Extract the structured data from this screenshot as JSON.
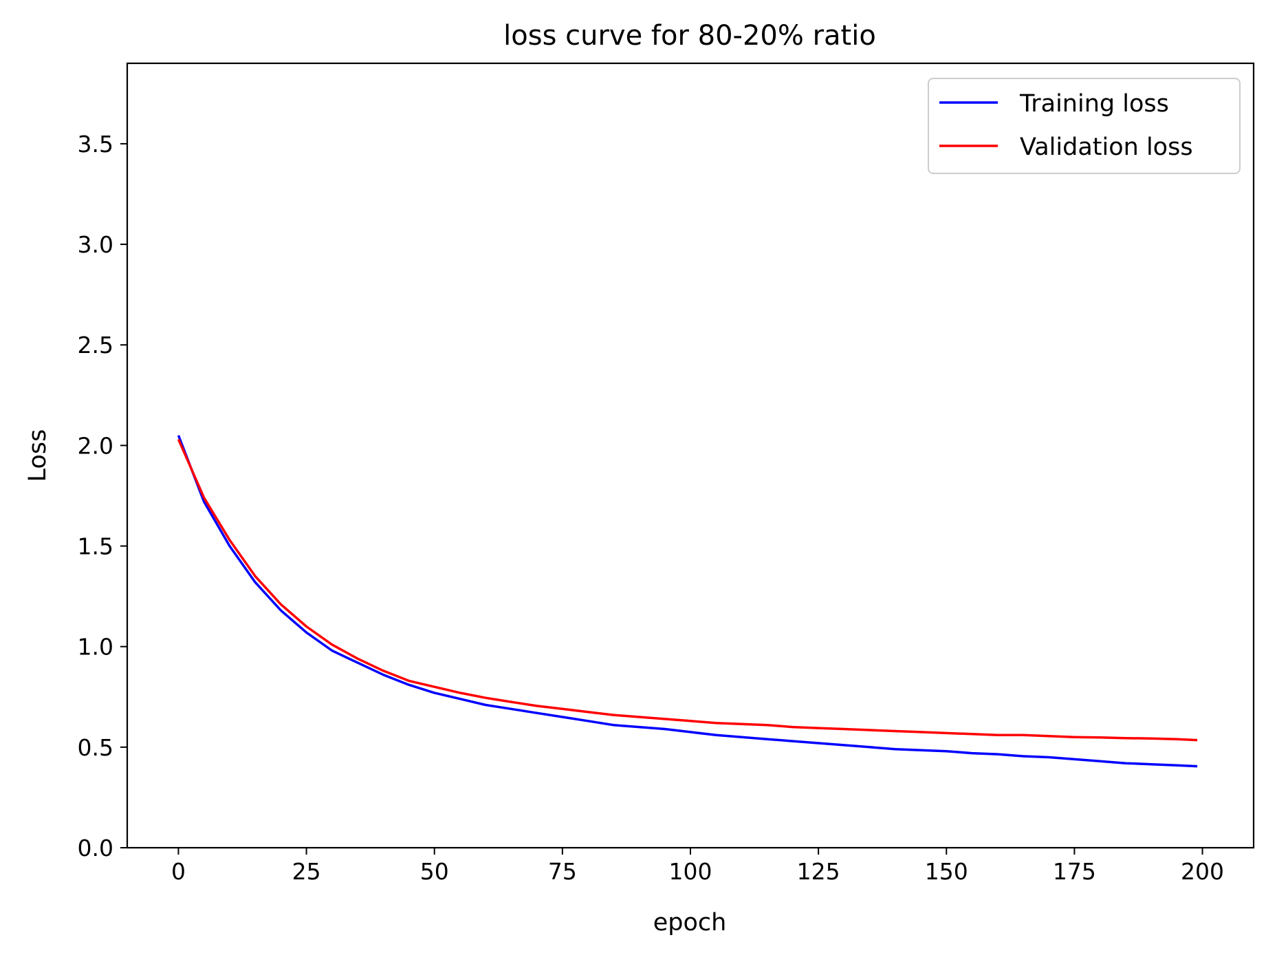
{
  "chart_data": {
    "type": "line",
    "title": "loss curve for 80-20% ratio",
    "xlabel": "epoch",
    "ylabel": "Loss",
    "xlim": [
      -10,
      210
    ],
    "ylim": [
      0,
      3.9
    ],
    "x_ticks": [
      0,
      25,
      50,
      75,
      100,
      125,
      150,
      175,
      200
    ],
    "y_ticks": [
      0.0,
      0.5,
      1.0,
      1.5,
      2.0,
      2.5,
      3.0,
      3.5
    ],
    "grid": false,
    "legend_position": "top-right",
    "x": [
      0,
      5,
      10,
      15,
      20,
      25,
      30,
      35,
      40,
      45,
      50,
      55,
      60,
      65,
      70,
      75,
      80,
      85,
      90,
      95,
      100,
      105,
      110,
      115,
      120,
      125,
      130,
      135,
      140,
      145,
      150,
      155,
      160,
      165,
      170,
      175,
      180,
      185,
      190,
      195,
      199
    ],
    "series": [
      {
        "name": "Training loss",
        "color": "#0000ff",
        "values": [
          2.05,
          1.72,
          1.5,
          1.32,
          1.18,
          1.07,
          0.98,
          0.92,
          0.86,
          0.81,
          0.77,
          0.74,
          0.71,
          0.69,
          0.67,
          0.65,
          0.63,
          0.61,
          0.6,
          0.59,
          0.575,
          0.56,
          0.55,
          0.54,
          0.53,
          0.52,
          0.51,
          0.5,
          0.49,
          0.485,
          0.48,
          0.47,
          0.465,
          0.455,
          0.45,
          0.44,
          0.43,
          0.42,
          0.415,
          0.41,
          0.405
        ]
      },
      {
        "name": "Validation loss",
        "color": "#ff0000",
        "values": [
          2.03,
          1.74,
          1.53,
          1.35,
          1.21,
          1.1,
          1.01,
          0.94,
          0.88,
          0.83,
          0.8,
          0.77,
          0.745,
          0.725,
          0.705,
          0.69,
          0.675,
          0.66,
          0.65,
          0.64,
          0.63,
          0.62,
          0.615,
          0.61,
          0.6,
          0.595,
          0.59,
          0.585,
          0.58,
          0.575,
          0.57,
          0.565,
          0.56,
          0.56,
          0.555,
          0.55,
          0.548,
          0.545,
          0.543,
          0.54,
          0.535
        ]
      }
    ]
  }
}
